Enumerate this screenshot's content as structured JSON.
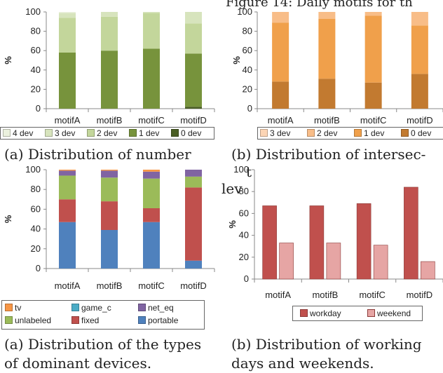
{
  "figure_title": "Figure 14: Daily motifs for th",
  "captions": {
    "c1": "(a) Distribution of number",
    "c2": "(b) Distribution of intersec-",
    "c2_frag1": "t",
    "c2_frag2": "lev",
    "c3_line1": "(a) Distribution of the types",
    "c3_line2": "of dominant devices.",
    "c4_line1": "(b) Distribution of working",
    "c4_line2": "days and weekends."
  },
  "chart_data": [
    {
      "id": "chart1",
      "type": "bar",
      "stacked": true,
      "categories": [
        "motifA",
        "motifB",
        "motifC",
        "motifD"
      ],
      "ylabel": "%",
      "ylim": [
        0,
        100
      ],
      "yticks": [
        0,
        20,
        40,
        60,
        80,
        100
      ],
      "series": [
        {
          "name": "0 dev",
          "color": "#4a5e23",
          "values": [
            0,
            0,
            0,
            2
          ]
        },
        {
          "name": "1 dev",
          "color": "#77933c",
          "values": [
            58,
            60,
            62,
            55
          ]
        },
        {
          "name": "2 dev",
          "color": "#c3d69b",
          "values": [
            36,
            35,
            37,
            31
          ]
        },
        {
          "name": "3 dev",
          "color": "#d7e4bd",
          "values": [
            5,
            5,
            1,
            12
          ]
        },
        {
          "name": "4 dev",
          "color": "#ebf1de",
          "values": [
            1,
            0,
            0,
            0
          ]
        }
      ],
      "legend": [
        "4 dev",
        "3 dev",
        "2 dev",
        "1 dev",
        "0 dev"
      ]
    },
    {
      "id": "chart2",
      "type": "bar",
      "stacked": true,
      "categories": [
        "motifA",
        "motifB",
        "motifC",
        "motifD"
      ],
      "ylabel": "%",
      "ylim": [
        0,
        100
      ],
      "yticks": [
        0,
        20,
        40,
        60,
        80,
        100
      ],
      "series": [
        {
          "name": "0 dev",
          "color": "#c27a30",
          "values": [
            28,
            31,
            27,
            36
          ]
        },
        {
          "name": "1 dev",
          "color": "#f0a04b",
          "values": [
            61,
            62,
            69,
            50
          ]
        },
        {
          "name": "2 dev",
          "color": "#f8bd88",
          "values": [
            11,
            7,
            4,
            14
          ]
        },
        {
          "name": "3 dev",
          "color": "#fcd5b5",
          "values": [
            0,
            0,
            0,
            0
          ]
        }
      ],
      "legend": [
        "3 dev",
        "2 dev",
        "1 dev",
        "0 dev"
      ]
    },
    {
      "id": "chart3",
      "type": "bar",
      "stacked": true,
      "categories": [
        "motifA",
        "motifB",
        "motifC",
        "motifD"
      ],
      "ylabel": "%",
      "ylim": [
        0,
        100
      ],
      "yticks": [
        0,
        20,
        40,
        60,
        80,
        100
      ],
      "series": [
        {
          "name": "portable",
          "color": "#4f81bd",
          "values": [
            47,
            39,
            47,
            8
          ]
        },
        {
          "name": "fixed",
          "color": "#c0504d",
          "values": [
            23,
            29,
            14,
            74
          ]
        },
        {
          "name": "unlabeled",
          "color": "#9bbb59",
          "values": [
            24,
            24,
            30,
            11
          ]
        },
        {
          "name": "net_eq",
          "color": "#8064a2",
          "values": [
            5,
            7,
            7,
            7
          ]
        },
        {
          "name": "game_c",
          "color": "#4bacc6",
          "values": [
            0,
            0,
            0,
            0
          ]
        },
        {
          "name": "tv",
          "color": "#f79646",
          "values": [
            1,
            1,
            2,
            0
          ]
        }
      ],
      "legend": [
        "tv",
        "game_c",
        "net_eq",
        "unlabeled",
        "fixed",
        "portable"
      ]
    },
    {
      "id": "chart4",
      "type": "bar",
      "stacked": false,
      "categories": [
        "motifA",
        "motifB",
        "motifC",
        "motifD"
      ],
      "ylabel": "%",
      "ylim": [
        0,
        100
      ],
      "yticks": [
        0,
        20,
        40,
        60,
        80,
        100
      ],
      "series": [
        {
          "name": "workday",
          "color": "#c0504d",
          "values": [
            67,
            67,
            69,
            84
          ]
        },
        {
          "name": "weekend",
          "color": "#e6a5a4",
          "values": [
            33,
            33,
            31,
            16
          ]
        }
      ],
      "legend": [
        "workday",
        "weekend"
      ]
    }
  ]
}
